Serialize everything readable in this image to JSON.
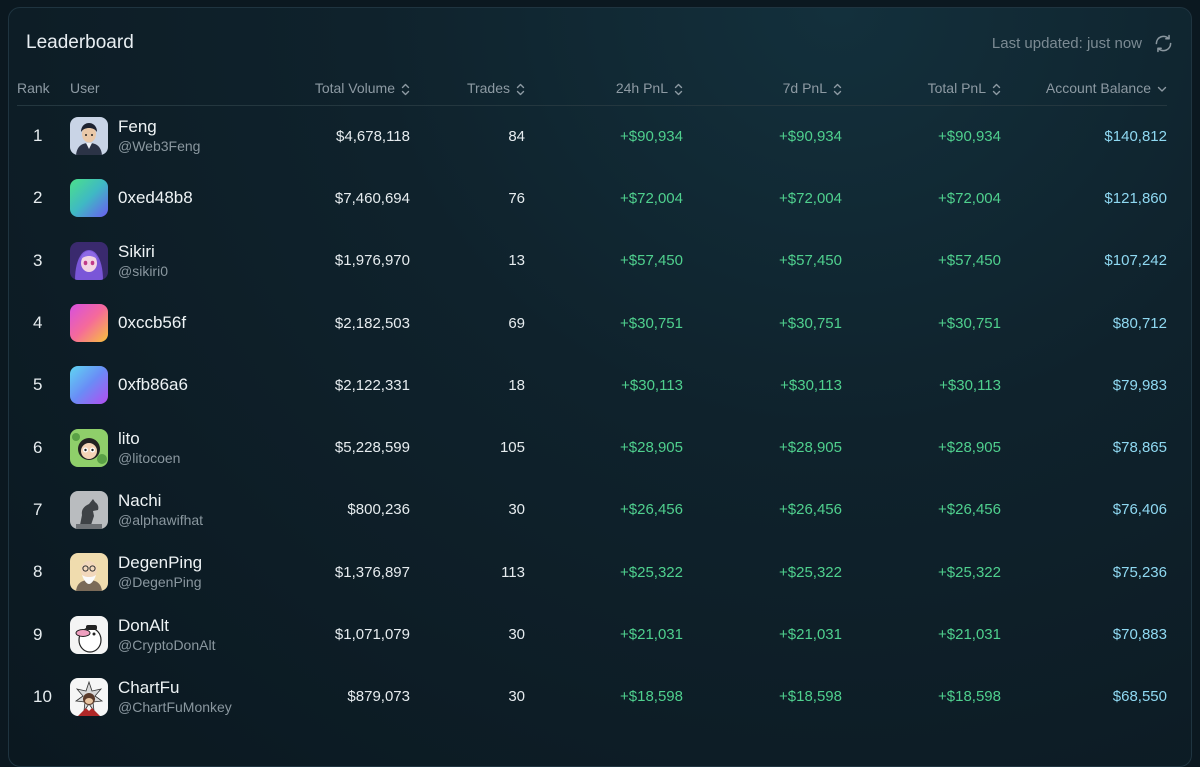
{
  "header": {
    "title": "Leaderboard",
    "last_updated": "Last updated: just now"
  },
  "columns": {
    "rank": "Rank",
    "user": "User",
    "total_volume": "Total Volume",
    "trades": "Trades",
    "pnl_24h": "24h PnL",
    "pnl_7d": "7d PnL",
    "total_pnl": "Total PnL",
    "account_balance": "Account Balance"
  },
  "rows": [
    {
      "rank": "1",
      "name": "Feng",
      "handle": "@Web3Feng",
      "avatar": "portrait-man-icon",
      "volume": "$4,678,118",
      "trades": "84",
      "pnl_24h": "+$90,934",
      "pnl_7d": "+$90,934",
      "total_pnl": "+$90,934",
      "balance": "$140,812"
    },
    {
      "rank": "2",
      "name": "0xed48b8",
      "handle": "",
      "avatar": "gradient-green-blue-icon",
      "volume": "$7,460,694",
      "trades": "76",
      "pnl_24h": "+$72,004",
      "pnl_7d": "+$72,004",
      "total_pnl": "+$72,004",
      "balance": "$121,860"
    },
    {
      "rank": "3",
      "name": "Sikiri",
      "handle": "@sikiri0",
      "avatar": "anime-girl-icon",
      "volume": "$1,976,970",
      "trades": "13",
      "pnl_24h": "+$57,450",
      "pnl_7d": "+$57,450",
      "total_pnl": "+$57,450",
      "balance": "$107,242"
    },
    {
      "rank": "4",
      "name": "0xccb56f",
      "handle": "",
      "avatar": "gradient-pink-orange-icon",
      "volume": "$2,182,503",
      "trades": "69",
      "pnl_24h": "+$30,751",
      "pnl_7d": "+$30,751",
      "total_pnl": "+$30,751",
      "balance": "$80,712"
    },
    {
      "rank": "5",
      "name": "0xfb86a6",
      "handle": "",
      "avatar": "gradient-cyan-purple-icon",
      "volume": "$2,122,331",
      "trades": "18",
      "pnl_24h": "+$30,113",
      "pnl_7d": "+$30,113",
      "total_pnl": "+$30,113",
      "balance": "$79,983"
    },
    {
      "rank": "6",
      "name": "lito",
      "handle": "@litocoen",
      "avatar": "cartoon-character-icon",
      "volume": "$5,228,599",
      "trades": "105",
      "pnl_24h": "+$28,905",
      "pnl_7d": "+$28,905",
      "total_pnl": "+$28,905",
      "balance": "$78,865"
    },
    {
      "rank": "7",
      "name": "Nachi",
      "handle": "@alphawifhat",
      "avatar": "horse-statue-icon",
      "volume": "$800,236",
      "trades": "30",
      "pnl_24h": "+$26,456",
      "pnl_7d": "+$26,456",
      "total_pnl": "+$26,456",
      "balance": "$76,406"
    },
    {
      "rank": "8",
      "name": "DegenPing",
      "handle": "@DegenPing",
      "avatar": "old-man-icon",
      "volume": "$1,376,897",
      "trades": "113",
      "pnl_24h": "+$25,322",
      "pnl_7d": "+$25,322",
      "total_pnl": "+$25,322",
      "balance": "$75,236"
    },
    {
      "rank": "9",
      "name": "DonAlt",
      "handle": "@CryptoDonAlt",
      "avatar": "duck-icon",
      "volume": "$1,071,079",
      "trades": "30",
      "pnl_24h": "+$21,031",
      "pnl_7d": "+$21,031",
      "total_pnl": "+$21,031",
      "balance": "$70,883"
    },
    {
      "rank": "10",
      "name": "ChartFu",
      "handle": "@ChartFuMonkey",
      "avatar": "monkey-icon",
      "volume": "$879,073",
      "trades": "30",
      "pnl_24h": "+$18,598",
      "pnl_7d": "+$18,598",
      "total_pnl": "+$18,598",
      "balance": "$68,550"
    }
  ],
  "colors": {
    "background": "#0b1820",
    "positive": "#4fd08e",
    "balance": "#8fd9f2",
    "muted": "#8d9aa3"
  }
}
